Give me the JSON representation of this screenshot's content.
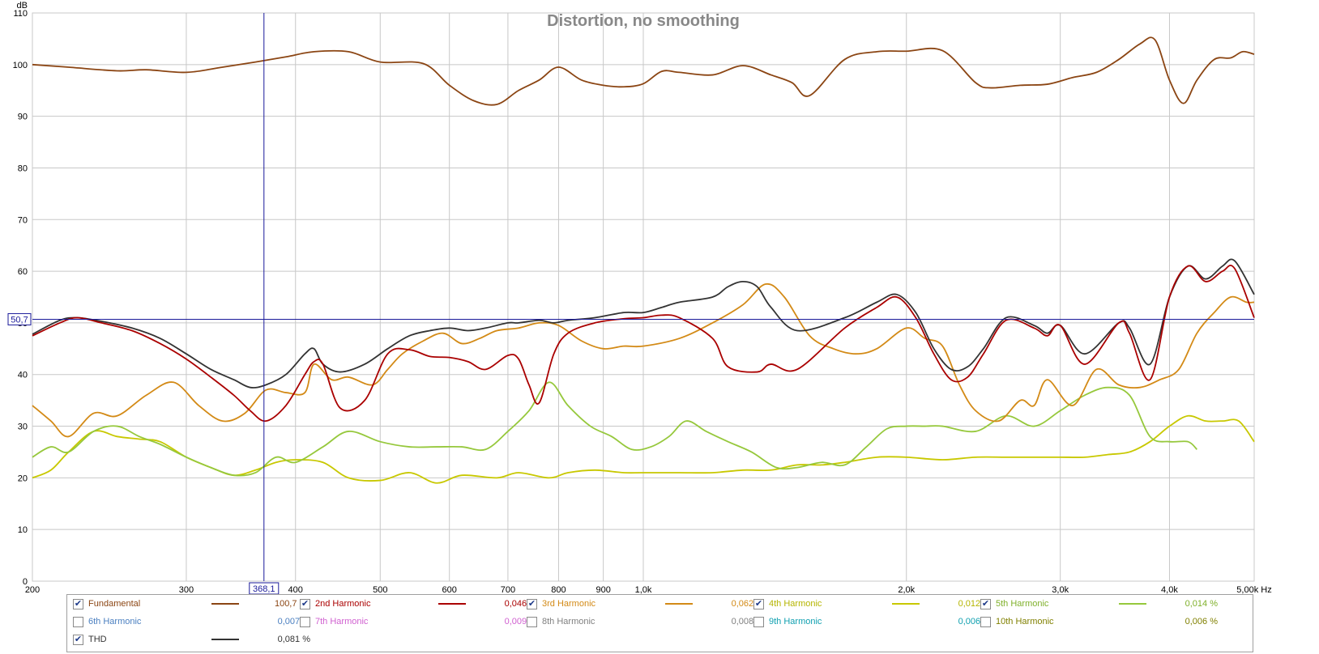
{
  "chart_data": {
    "type": "line",
    "title": "Distortion, no smoothing",
    "ylabel": "dB",
    "xunit": "Hz",
    "xscale": "log",
    "xlim": [
      200,
      5000
    ],
    "ylim": [
      0,
      110
    ],
    "yticks": [
      0,
      10,
      20,
      30,
      40,
      50,
      60,
      70,
      80,
      90,
      100,
      110
    ],
    "xticks": [
      {
        "v": 200,
        "label": "200"
      },
      {
        "v": 300,
        "label": "300"
      },
      {
        "v": 400,
        "label": "400"
      },
      {
        "v": 500,
        "label": "500"
      },
      {
        "v": 600,
        "label": "600"
      },
      {
        "v": 700,
        "label": "700"
      },
      {
        "v": 800,
        "label": "800"
      },
      {
        "v": 900,
        "label": "900"
      },
      {
        "v": 1000,
        "label": "1,0k"
      },
      {
        "v": 2000,
        "label": "2,0k"
      },
      {
        "v": 3000,
        "label": "3,0k"
      },
      {
        "v": 4000,
        "label": "4,0k"
      },
      {
        "v": 5000,
        "label": "5,00k Hz"
      }
    ],
    "grid": true,
    "cursor": {
      "x": 368.1,
      "x_label": "368,1",
      "y": 50.7,
      "y_label": "50,7"
    },
    "series": [
      {
        "name": "Fundamental",
        "color": "#8b4513",
        "x": [
          200,
          220,
          250,
          270,
          300,
          330,
          360,
          390,
          420,
          460,
          500,
          560,
          600,
          640,
          680,
          720,
          760,
          800,
          850,
          900,
          950,
          1000,
          1050,
          1100,
          1200,
          1300,
          1400,
          1480,
          1550,
          1700,
          1850,
          2000,
          2200,
          2400,
          2500,
          2700,
          2900,
          3100,
          3300,
          3500,
          3700,
          3850,
          4000,
          4150,
          4300,
          4500,
          4700,
          4850,
          5000
        ],
        "y": [
          100,
          99.5,
          98.8,
          99,
          98.5,
          99.5,
          100.5,
          101.5,
          102.5,
          102.5,
          100.5,
          100.2,
          96,
          93,
          92.3,
          95,
          97,
          99.5,
          97,
          96,
          95.7,
          96.3,
          98.7,
          98.5,
          98,
          99.8,
          98,
          96.5,
          94,
          101,
          102.5,
          102.6,
          102.7,
          96.5,
          95.5,
          96,
          96.2,
          97.5,
          98.5,
          101,
          104,
          104.8,
          97,
          92.5,
          97,
          101,
          101.3,
          102.5,
          102
        ]
      },
      {
        "name": "2nd Harmonic",
        "color": "#aa0000",
        "x": [
          200,
          215,
          225,
          240,
          260,
          280,
          300,
          320,
          340,
          355,
          370,
          390,
          410,
          420,
          430,
          450,
          480,
          510,
          540,
          570,
          600,
          630,
          660,
          700,
          720,
          740,
          760,
          790,
          820,
          880,
          950,
          1000,
          1050,
          1100,
          1200,
          1250,
          1350,
          1400,
          1500,
          1700,
          1850,
          1950,
          2050,
          2150,
          2250,
          2350,
          2450,
          2600,
          2800,
          2900,
          3000,
          3200,
          3500,
          3600,
          3800,
          4000,
          4200,
          4400,
          4600,
          4750,
          5000
        ],
        "y": [
          47.5,
          50,
          51,
          50,
          48.5,
          46,
          43,
          39.5,
          36,
          33,
          31,
          34,
          40,
          42.5,
          42,
          33.5,
          35,
          44,
          44.8,
          43.5,
          43.3,
          42.5,
          41,
          43.7,
          43,
          38,
          34.5,
          44,
          48,
          50,
          50.8,
          51,
          51.5,
          51,
          47,
          41.5,
          40.5,
          42,
          41,
          49,
          53,
          55,
          51,
          44,
          39,
          39.5,
          44,
          50.5,
          49,
          47.5,
          49.5,
          42,
          50,
          48,
          39,
          55,
          61,
          58,
          60,
          60.5,
          51
        ]
      },
      {
        "name": "3rd Harmonic",
        "color": "#d38a16",
        "x": [
          200,
          210,
          220,
          235,
          250,
          270,
          290,
          310,
          330,
          350,
          370,
          390,
          410,
          420,
          440,
          460,
          490,
          510,
          530,
          560,
          590,
          620,
          650,
          680,
          720,
          760,
          800,
          850,
          900,
          950,
          1000,
          1100,
          1200,
          1300,
          1380,
          1450,
          1550,
          1650,
          1750,
          1850,
          2000,
          2100,
          2200,
          2300,
          2400,
          2550,
          2700,
          2800,
          2900,
          3100,
          3300,
          3500,
          3700,
          3900,
          4100,
          4300,
          4500,
          4700,
          4900,
          5000
        ],
        "y": [
          34,
          31,
          28,
          32.5,
          32,
          36,
          38.5,
          34,
          31,
          32.5,
          37,
          36.5,
          36.5,
          42,
          39,
          39.5,
          38,
          41,
          44,
          46.5,
          48,
          46,
          47,
          48.5,
          49,
          50,
          49.5,
          46.5,
          45,
          45.5,
          45.5,
          47,
          50,
          53.5,
          57.5,
          55,
          47.5,
          45,
          44,
          45,
          49,
          47,
          45.5,
          38,
          33,
          31,
          35,
          34,
          39,
          34,
          41,
          38,
          37.5,
          39,
          41,
          48,
          52,
          55,
          54,
          54
        ]
      },
      {
        "name": "4th Harmonic",
        "color": "#c8c800",
        "x": [
          200,
          210,
          220,
          235,
          250,
          265,
          280,
          300,
          320,
          340,
          360,
          380,
          400,
          430,
          460,
          500,
          540,
          580,
          620,
          680,
          720,
          780,
          820,
          880,
          950,
          1000,
          1100,
          1200,
          1300,
          1400,
          1500,
          1600,
          1700,
          1850,
          2000,
          2200,
          2400,
          2600,
          2800,
          3000,
          3200,
          3400,
          3600,
          3800,
          4000,
          4200,
          4400,
          4600,
          4800,
          5000
        ],
        "y": [
          20,
          21.5,
          25,
          29,
          28,
          27.5,
          27,
          24,
          22,
          20.5,
          21.5,
          23,
          23.5,
          23,
          20,
          19.5,
          21,
          19,
          20.5,
          20,
          21,
          20,
          21,
          21.5,
          21,
          21,
          21,
          21,
          21.5,
          21.5,
          22.5,
          22.5,
          23,
          24,
          24,
          23.5,
          24,
          24,
          24,
          24,
          24,
          24.5,
          25,
          27,
          30,
          32,
          31,
          31,
          31,
          27
        ]
      },
      {
        "name": "5th Harmonic",
        "color": "#96c83c",
        "x": [
          200,
          210,
          220,
          235,
          250,
          265,
          280,
          300,
          320,
          340,
          360,
          380,
          400,
          430,
          460,
          500,
          540,
          580,
          620,
          660,
          700,
          740,
          780,
          820,
          870,
          920,
          970,
          1020,
          1070,
          1120,
          1180,
          1250,
          1330,
          1420,
          1500,
          1600,
          1700,
          1800,
          1900,
          2000,
          2100,
          2200,
          2400,
          2600,
          2800,
          3000,
          3200,
          3400,
          3600,
          3800,
          4000,
          4200,
          4300
        ],
        "y": [
          24,
          26,
          25,
          29,
          30,
          28,
          26.5,
          24,
          22,
          20.5,
          21,
          24,
          23,
          26,
          29,
          27,
          26,
          26,
          26,
          25.5,
          29,
          33,
          38.5,
          34,
          30,
          28,
          25.5,
          26,
          28,
          31,
          29,
          27,
          25,
          22,
          22,
          23,
          22.5,
          26,
          29.5,
          30,
          30,
          30,
          29,
          32,
          30,
          33,
          36,
          37.5,
          36,
          28,
          27,
          27,
          25.5
        ]
      },
      {
        "name": "THD",
        "color": "#333333",
        "x": [
          200,
          215,
          225,
          240,
          260,
          280,
          300,
          320,
          340,
          355,
          370,
          390,
          410,
          420,
          430,
          450,
          480,
          510,
          540,
          570,
          600,
          630,
          660,
          700,
          720,
          760,
          790,
          820,
          880,
          950,
          1000,
          1050,
          1100,
          1200,
          1250,
          1300,
          1350,
          1400,
          1500,
          1700,
          1850,
          1950,
          2050,
          2150,
          2250,
          2350,
          2450,
          2600,
          2800,
          2900,
          3000,
          3200,
          3500,
          3600,
          3800,
          4000,
          4200,
          4400,
          4600,
          4750,
          5000
        ],
        "y": [
          47.8,
          50.5,
          51,
          50.3,
          49,
          47,
          44,
          41,
          39,
          37.5,
          38,
          40,
          44,
          45,
          42,
          40.5,
          42,
          45,
          47.5,
          48.5,
          49,
          48.5,
          49,
          50,
          50,
          50.5,
          50,
          50.5,
          51,
          52,
          52,
          53,
          54,
          55,
          57,
          58,
          57,
          53,
          48.5,
          51,
          54,
          55.5,
          52,
          45,
          41,
          41.5,
          45,
          51,
          49.5,
          48,
          49.5,
          44,
          50,
          49,
          42,
          55,
          61,
          58.5,
          61,
          62,
          55.5
        ]
      }
    ]
  },
  "legend": {
    "rows": [
      [
        {
          "label": "Fundamental",
          "checked": true,
          "value": "100,7 dB",
          "color": "#8b4513",
          "text_color": "#8b4513",
          "show_line": true
        },
        {
          "label": "2nd Harmonic",
          "checked": true,
          "value": "0,046 %",
          "color": "#aa0000",
          "text_color": "#aa0000",
          "show_line": true
        },
        {
          "label": "3rd Harmonic",
          "checked": true,
          "value": "0,062 %",
          "color": "#d38a16",
          "text_color": "#d38a16",
          "show_line": true
        },
        {
          "label": "4th Harmonic",
          "checked": true,
          "value": "0,012 %",
          "color": "#c8c800",
          "text_color": "#b5b500",
          "show_line": true
        },
        {
          "label": "5th Harmonic",
          "checked": true,
          "value": "0,014 %",
          "color": "#96c83c",
          "text_color": "#7fb02a",
          "show_line": true
        }
      ],
      [
        {
          "label": "6th Harmonic",
          "checked": false,
          "value": "0,007 %",
          "color": "#4a7fc0",
          "text_color": "#4a7fc0",
          "show_line": false
        },
        {
          "label": "7th Harmonic",
          "checked": false,
          "value": "0,009 %",
          "color": "#d060d0",
          "text_color": "#d060d0",
          "show_line": false
        },
        {
          "label": "8th Harmonic",
          "checked": false,
          "value": "0,008 %",
          "color": "#808080",
          "text_color": "#808080",
          "show_line": false
        },
        {
          "label": "9th Harmonic",
          "checked": false,
          "value": "0,006 %",
          "color": "#10a0b0",
          "text_color": "#10a0b0",
          "show_line": false
        },
        {
          "label": "10th Harmonic",
          "checked": false,
          "value": "0,006 %",
          "color": "#808000",
          "text_color": "#808000",
          "show_line": false
        }
      ],
      [
        {
          "label": "THD",
          "checked": true,
          "value": "0,081 %",
          "color": "#333333",
          "text_color": "#333333",
          "show_line": true
        }
      ]
    ]
  }
}
